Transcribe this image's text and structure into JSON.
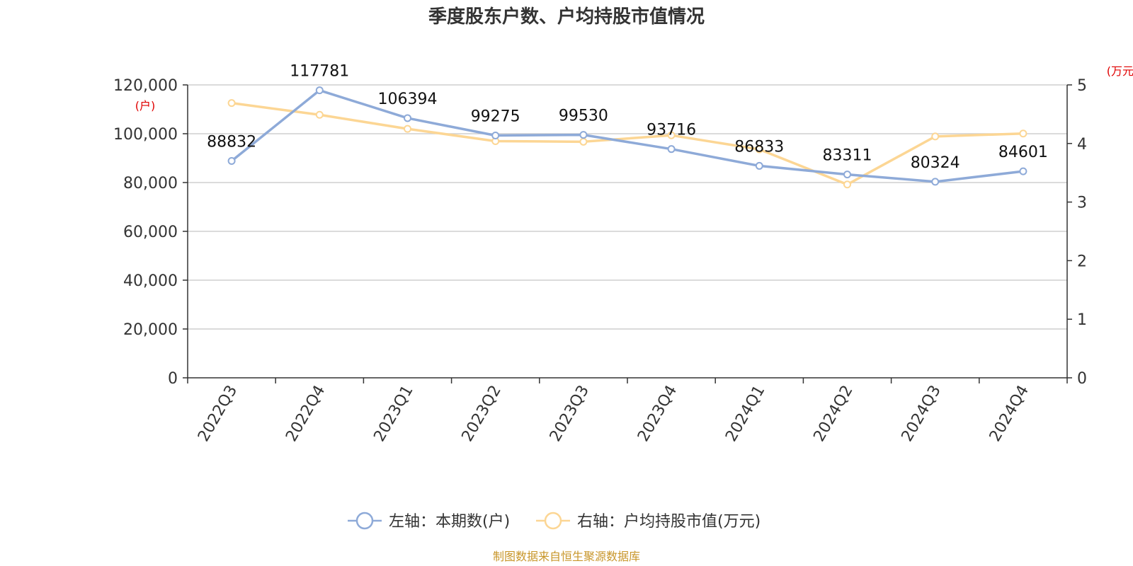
{
  "title": "季度股东户数、户均持股市值情况",
  "source": "制图数据来自恒生聚源数据库",
  "colors": {
    "left_series": "#8eaad8",
    "right_series": "#fcd694",
    "unit_text": "#e00000",
    "source_text": "#c8962a"
  },
  "chart_data": {
    "type": "line",
    "categories": [
      "2022Q3",
      "2022Q4",
      "2023Q1",
      "2023Q2",
      "2023Q3",
      "2023Q4",
      "2024Q1",
      "2024Q2",
      "2024Q3",
      "2024Q4"
    ],
    "left_axis": {
      "unit": "(户)",
      "ylim": [
        0,
        120000
      ],
      "ticks": [
        0,
        20000,
        40000,
        60000,
        80000,
        100000,
        120000
      ],
      "tick_labels": [
        "0",
        "20,000",
        "40,000",
        "60,000",
        "80,000",
        "100,000",
        "120,000"
      ]
    },
    "right_axis": {
      "unit": "(万元)",
      "ylim": [
        0,
        5
      ],
      "ticks": [
        0,
        1,
        2,
        3,
        4,
        5
      ],
      "tick_labels": [
        "0",
        "1",
        "2",
        "3",
        "4",
        "5"
      ]
    },
    "grid": true,
    "legend_position": "bottom",
    "series": [
      {
        "name": "左轴：本期数(户)",
        "axis": "left",
        "values": [
          88832,
          117781,
          106394,
          99275,
          99530,
          93716,
          86833,
          83311,
          80324,
          84601
        ],
        "labels": [
          "88832",
          "117781",
          "106394",
          "99275",
          "99530",
          "93716",
          "86833",
          "83311",
          "80324",
          "84601"
        ]
      },
      {
        "name": "右轴：户均持股市值(万元)",
        "axis": "right",
        "values": [
          4.69,
          4.49,
          4.25,
          4.04,
          4.03,
          4.14,
          3.9,
          3.3,
          4.12,
          4.17
        ]
      }
    ]
  }
}
